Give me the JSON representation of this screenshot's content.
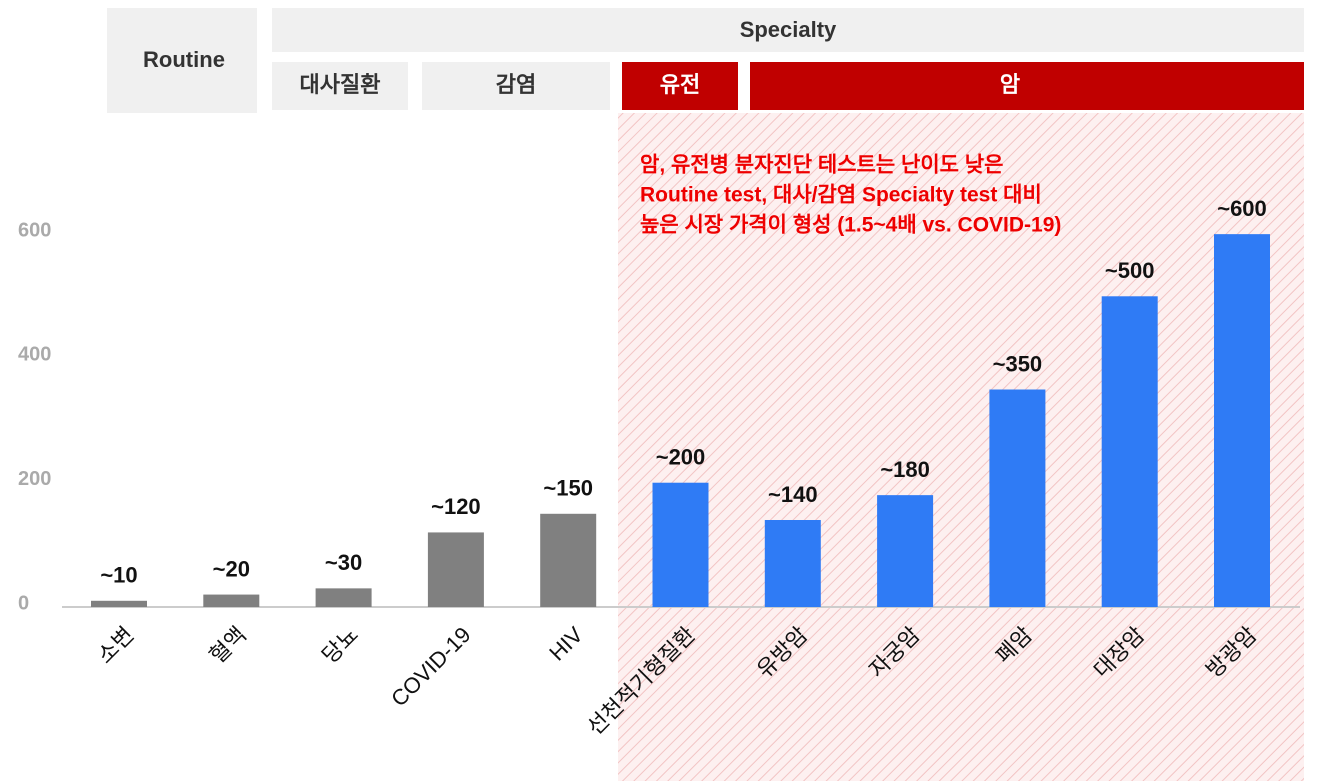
{
  "header": {
    "routine": "Routine",
    "specialty": "Specialty",
    "groups": [
      "대사질환",
      "감염",
      "유전",
      "암"
    ]
  },
  "chart_data": {
    "type": "bar",
    "annotation": [
      "암, 유전병 분자진단 테스트는 난이도 낮은",
      "Routine test, 대사/감염 Specialty test 대비",
      "높은 시장 가격이 형성 (1.5~4배 vs. COVID-19)"
    ],
    "categories": [
      "소변",
      "혈액",
      "당뇨",
      "COVID-19",
      "HIV",
      "선천적기형질환",
      "유방암",
      "자궁암",
      "폐암",
      "대장암",
      "방광암"
    ],
    "values": [
      10,
      20,
      30,
      120,
      150,
      200,
      140,
      180,
      350,
      500,
      600
    ],
    "value_labels": [
      "~10",
      "~20",
      "~30",
      "~120",
      "~150",
      "~200",
      "~140",
      "~180",
      "~350",
      "~500",
      "~600"
    ],
    "colors": [
      "#808080",
      "#808080",
      "#808080",
      "#808080",
      "#808080",
      "#2f7bf5",
      "#2f7bf5",
      "#2f7bf5",
      "#2f7bf5",
      "#2f7bf5",
      "#2f7bf5"
    ],
    "ylim": [
      0,
      700
    ],
    "yticks": [
      0,
      200,
      400,
      600
    ],
    "grid": false
  }
}
